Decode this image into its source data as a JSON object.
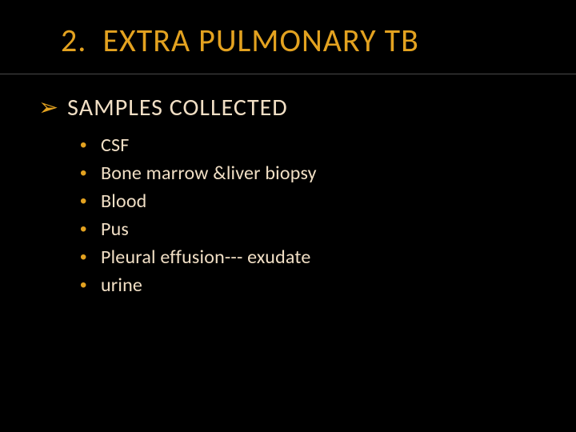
{
  "colors": {
    "background": "#000000",
    "title": "#e3a220",
    "divider": "#4a4a4a",
    "heading_bullet": "#e3a220",
    "heading_text": "#f1dfc5",
    "item_bullet": "#e3a220",
    "item_text": "#f1dfc5"
  },
  "title": "2.  EXTRA PULMONARY TB",
  "heading": {
    "bullet": "➢",
    "text": "SAMPLES COLLECTED"
  },
  "item_bullet": "•",
  "items": [
    "CSF",
    "Bone marrow &liver biopsy",
    "Blood",
    "Pus",
    "Pleural effusion--- exudate",
    "urine"
  ]
}
